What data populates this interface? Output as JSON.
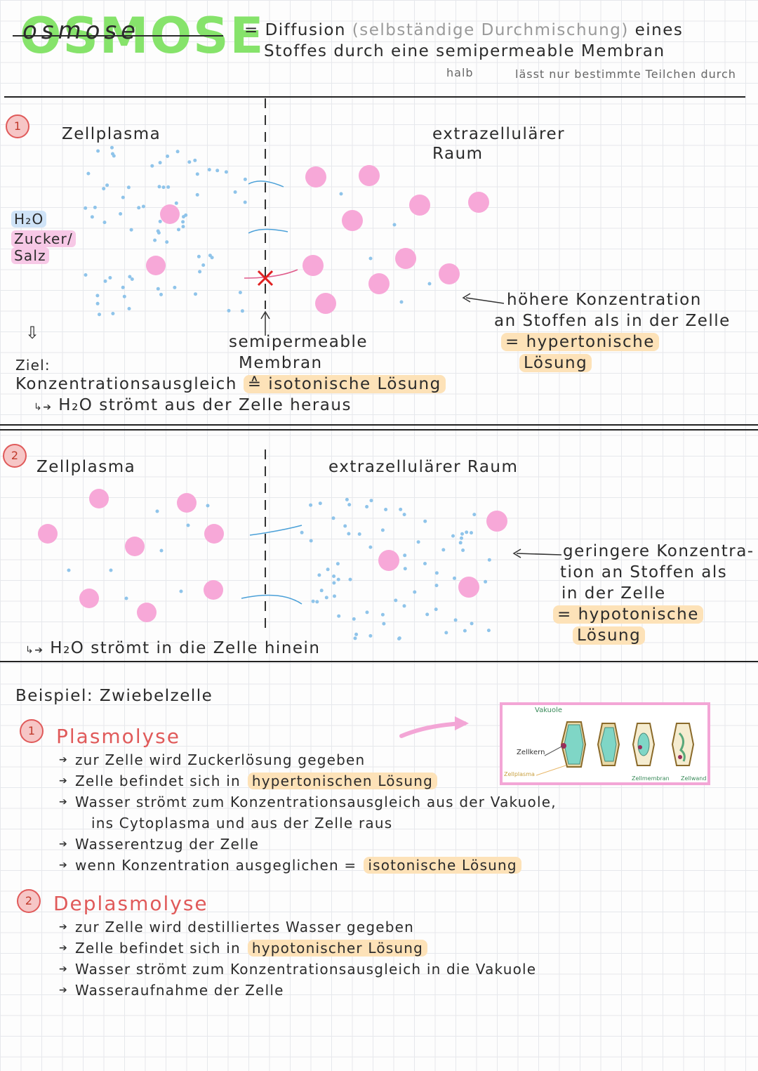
{
  "title": "Osmose",
  "definition": {
    "line1_pre": "= Diffusion",
    "line1_paren": "(selbständige Durchmischung)",
    "line1_post": "eines",
    "line2": "Stoffes durch eine semipermeable Membran",
    "note_halb": "halb",
    "note_durch": "lässt nur bestimmte Teilchen durch"
  },
  "section1": {
    "number": "1",
    "left_label": "Zellplasma",
    "right_label_1": "extrazellulärer",
    "right_label_2": "Raum",
    "legend_h2o": "H₂O",
    "legend_zucker": "Zucker/",
    "legend_salz": "Salz",
    "membrane_1": "semipermeable",
    "membrane_2": "Membran",
    "side_note_1": "höhere Konzentration",
    "side_note_2": "an Stoffen als in der Zelle",
    "side_note_3": "= hypertonische",
    "side_note_4": "Lösung",
    "ziel": "Ziel:",
    "ausgleich": "Konzentrationsausgleich",
    "iso": "≙ isotonische Lösung",
    "result": "H₂O strömt aus der Zelle heraus"
  },
  "section2": {
    "number": "2",
    "left_label": "Zellplasma",
    "right_label": "extrazellulärer Raum",
    "side_note_1": "geringere Konzentra-",
    "side_note_2": "tion an Stoffen als",
    "side_note_3": "in der Zelle",
    "side_note_4": "= hypotonische",
    "side_note_5": "Lösung",
    "result": "H₂O strömt in die Zelle hinein"
  },
  "example": {
    "heading": "Beispiel: Zwiebelzelle",
    "plasmolyse": {
      "number": "1",
      "title": "Plasmolyse",
      "items": [
        "zur Zelle wird Zuckerlösung gegeben",
        "Zelle befindet sich in",
        "Wasser strömt zum Konzentrationsausgleich aus der Vakuole,",
        "ins Cytoplasma und aus der Zelle raus",
        "Wasserentzug der Zelle",
        "wenn Konzentration ausgeglichen ="
      ],
      "hl_hyper": "hypertonischen Lösung",
      "hl_iso": "isotonische Lösung"
    },
    "deplasmolyse": {
      "number": "2",
      "title": "Deplasmolyse",
      "items": [
        "zur Zelle wird destilliertes Wasser gegeben",
        "Zelle befindet sich in",
        "Wasser strömt zum Konzentrationsausgleich in die Vakuole",
        "Wasseraufnahme der Zelle"
      ],
      "hl_hypo": "hypotonischer Lösung"
    },
    "figure": {
      "vakuole": "Vakuole",
      "zellkern": "Zellkern",
      "zellplasma": "Zellplasma",
      "zellmembran": "Zellmembran",
      "zellwand": "Zellwand"
    }
  },
  "colors": {
    "title_green": "#86e36b",
    "dot_blue": "#8fc4ea",
    "pink": "#f7a8d8",
    "highlight": "#fde2b8",
    "red": "#e05a5a",
    "vacuole": "#7fd6c6"
  }
}
